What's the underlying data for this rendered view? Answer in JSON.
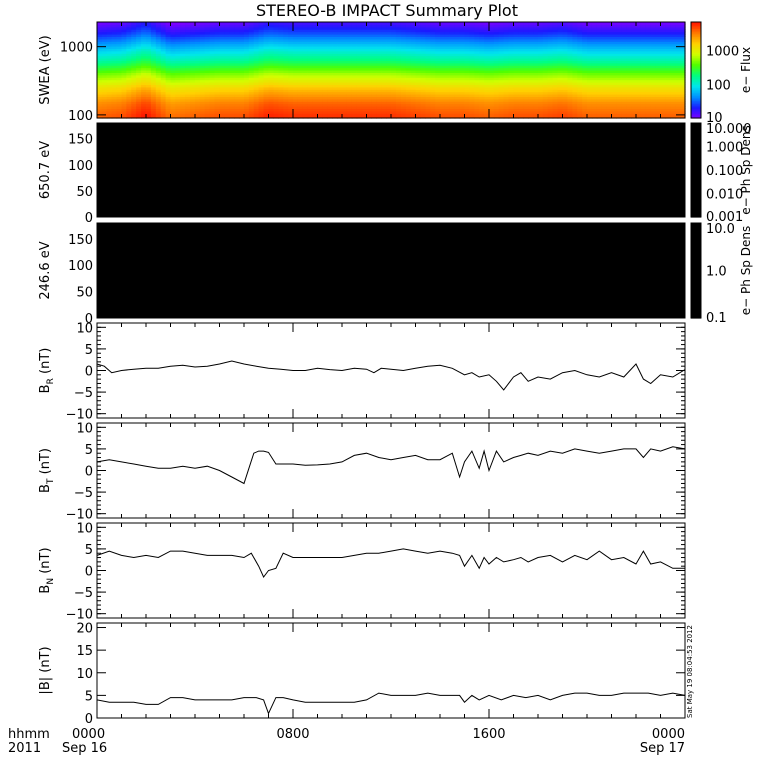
{
  "chart_data": {
    "title": "STEREO-B IMPACT Summary Plot",
    "stamp": "Sat May 19 08:04:53 2012",
    "time_axis": {
      "row_label_1": "hhmm",
      "row_label_2": "2011",
      "range_hours": [
        0,
        24
      ],
      "ticks": [
        {
          "hour": 0,
          "label": "0000",
          "date": "Sep 16"
        },
        {
          "hour": 8,
          "label": "0800",
          "date": ""
        },
        {
          "hour": 16,
          "label": "1600",
          "date": ""
        },
        {
          "hour": 24,
          "label": "0000",
          "date": "Sep 17"
        }
      ],
      "minor_every_hours": 1
    },
    "panels": [
      {
        "id": "swea",
        "type": "heatmap",
        "ylabel": "SWEA (eV)",
        "yscale": "log",
        "ylim": [
          90,
          2300
        ],
        "yticks": [
          {
            "v": 100,
            "label": "100"
          },
          {
            "v": 1000,
            "label": "1000"
          }
        ],
        "colorbar": {
          "label": "e− Flux",
          "scale": "log",
          "range": [
            10,
            7000
          ],
          "ticks": [
            {
              "v": 10,
              "label": "10"
            },
            {
              "v": 100,
              "label": "100"
            },
            {
              "v": 1000,
              "label": "1000"
            }
          ],
          "colors": [
            "#7f00ff",
            "#1a1aff",
            "#0090ff",
            "#00e5ee",
            "#00ff80",
            "#50ff00",
            "#d0ff00",
            "#ffd000",
            "#ff7a00",
            "#ff1500"
          ]
        },
        "profile": {
          "energies_eV": [
            100,
            150,
            250,
            400,
            600,
            1000,
            1600,
            2200
          ],
          "log_flux": [
            3.6,
            3.45,
            3.1,
            2.65,
            2.2,
            1.75,
            1.3,
            1.05
          ]
        },
        "modulation": {
          "hours": [
            0,
            1,
            2,
            3,
            4,
            5,
            6,
            7,
            8,
            9,
            10,
            11,
            12,
            13,
            14,
            15,
            16,
            17,
            18,
            19,
            20,
            21,
            22,
            23,
            24
          ],
          "shift": [
            0.0,
            0.05,
            0.25,
            -0.05,
            0.0,
            0.05,
            0.05,
            0.2,
            0.15,
            0.15,
            0.15,
            0.15,
            0.15,
            0.1,
            0.05,
            0.05,
            0.0,
            0.05,
            0.05,
            0.1,
            0.0,
            0.0,
            0.0,
            0.0,
            0.0
          ]
        }
      },
      {
        "id": "pad650",
        "type": "heatmap",
        "ylabel": "650.7 eV",
        "ylim": [
          0,
          180
        ],
        "yticks": [
          {
            "v": 0,
            "label": "0"
          },
          {
            "v": 50,
            "label": "50"
          },
          {
            "v": 100,
            "label": "100"
          },
          {
            "v": 150,
            "label": "150"
          }
        ],
        "fill": "#000000",
        "colorbar": {
          "label": "e− Ph Sp Dens",
          "scale": "log",
          "range": [
            0.001,
            10
          ],
          "ticks": [
            {
              "v": 0.001,
              "label": "0.001"
            },
            {
              "v": 0.01,
              "label": "0.010"
            },
            {
              "v": 0.1,
              "label": "0.100"
            },
            {
              "v": 1,
              "label": "1.000"
            },
            {
              "v": 10,
              "label": "10.000"
            }
          ],
          "colors": [
            "#000000"
          ]
        }
      },
      {
        "id": "pad246",
        "type": "heatmap",
        "ylabel": "246.6 eV",
        "ylim": [
          0,
          180
        ],
        "yticks": [
          {
            "v": 0,
            "label": "0"
          },
          {
            "v": 50,
            "label": "50"
          },
          {
            "v": 100,
            "label": "100"
          },
          {
            "v": 150,
            "label": "150"
          }
        ],
        "fill": "#000000",
        "colorbar": {
          "label": "e− Ph Sp Dens",
          "scale": "log",
          "range": [
            0.1,
            10
          ],
          "ticks": [
            {
              "v": 0.1,
              "label": "0.1"
            },
            {
              "v": 1,
              "label": "1.0"
            },
            {
              "v": 10,
              "label": "10.0"
            }
          ],
          "colors": [
            "#000000"
          ]
        }
      },
      {
        "id": "br",
        "type": "line",
        "ylabel": "B",
        "ylabel_sub": "R",
        "ylabel_unit": "(nT)",
        "ylim": [
          -11,
          11
        ],
        "yticks": [
          {
            "v": -10,
            "label": "−10"
          },
          {
            "v": -5,
            "label": "−5"
          },
          {
            "v": 0,
            "label": "0"
          },
          {
            "v": 5,
            "label": "5"
          },
          {
            "v": 10,
            "label": "10"
          }
        ],
        "x": [
          0,
          0.3,
          0.6,
          1,
          1.5,
          2,
          2.5,
          3,
          3.5,
          4,
          4.5,
          5,
          5.5,
          6,
          6.5,
          7,
          7.5,
          8,
          8.5,
          9,
          9.5,
          10,
          10.5,
          11,
          11.3,
          11.6,
          12,
          12.5,
          13,
          13.5,
          14,
          14.5,
          15,
          15.3,
          15.6,
          16,
          16.3,
          16.6,
          17,
          17.3,
          17.6,
          18,
          18.5,
          19,
          19.5,
          20,
          20.5,
          21,
          21.5,
          22,
          22.3,
          22.6,
          23,
          23.5,
          24
        ],
        "y": [
          1.5,
          1.0,
          -0.5,
          0.0,
          0.3,
          0.5,
          0.5,
          1.0,
          1.2,
          0.8,
          1.0,
          1.5,
          2.2,
          1.5,
          1.0,
          0.5,
          0.3,
          0.0,
          0.0,
          0.5,
          0.2,
          0.0,
          0.5,
          0.3,
          -0.5,
          0.5,
          0.3,
          0.0,
          0.5,
          1.0,
          1.2,
          0.5,
          -1.0,
          -0.5,
          -1.5,
          -1.0,
          -2.5,
          -4.5,
          -1.5,
          -0.5,
          -2.5,
          -1.5,
          -2.0,
          -0.5,
          0.0,
          -1.0,
          -1.5,
          -0.5,
          -1.5,
          1.5,
          -2.0,
          -3.0,
          -1.0,
          -1.5,
          0.2
        ]
      },
      {
        "id": "bt",
        "type": "line",
        "ylabel": "B",
        "ylabel_sub": "T",
        "ylabel_unit": "(nT)",
        "ylim": [
          -11,
          11
        ],
        "yticks": [
          {
            "v": -10,
            "label": "−10"
          },
          {
            "v": -5,
            "label": "−5"
          },
          {
            "v": 0,
            "label": "0"
          },
          {
            "v": 5,
            "label": "5"
          },
          {
            "v": 10,
            "label": "10"
          }
        ],
        "x": [
          0,
          0.5,
          1,
          1.5,
          2,
          2.5,
          3,
          3.5,
          4,
          4.5,
          5,
          5.5,
          6,
          6.2,
          6.4,
          6.6,
          6.8,
          7,
          7.3,
          7.6,
          8,
          8.5,
          9,
          9.5,
          10,
          10.5,
          11,
          11.5,
          12,
          12.5,
          13,
          13.5,
          14,
          14.5,
          14.8,
          15.0,
          15.3,
          15.6,
          15.8,
          16,
          16.3,
          16.6,
          17,
          17.3,
          17.6,
          18,
          18.5,
          19,
          19.5,
          20,
          20.5,
          21,
          21.5,
          22,
          22.3,
          22.6,
          23,
          23.5,
          24
        ],
        "y": [
          2.0,
          2.5,
          2.0,
          1.5,
          1.0,
          0.5,
          0.5,
          1.0,
          0.5,
          1.0,
          0.0,
          -1.5,
          -3.0,
          0.5,
          4.0,
          4.5,
          4.5,
          4.2,
          1.5,
          1.5,
          1.5,
          1.2,
          1.3,
          1.5,
          2.0,
          3.5,
          4.0,
          3.0,
          2.5,
          3.0,
          3.5,
          2.5,
          2.5,
          4.0,
          -1.5,
          2.0,
          4.5,
          0.5,
          4.5,
          0.0,
          4.5,
          2.0,
          3.0,
          3.5,
          4.0,
          3.5,
          4.5,
          4.0,
          5.0,
          4.5,
          4.0,
          4.5,
          5.0,
          5.0,
          3.0,
          5.0,
          4.5,
          5.5,
          5.0
        ]
      },
      {
        "id": "bn",
        "type": "line",
        "ylabel": "B",
        "ylabel_sub": "N",
        "ylabel_unit": "(nT)",
        "ylim": [
          -11,
          11
        ],
        "yticks": [
          {
            "v": -10,
            "label": "−10"
          },
          {
            "v": -5,
            "label": "−5"
          },
          {
            "v": 0,
            "label": "0"
          },
          {
            "v": 5,
            "label": "5"
          },
          {
            "v": 10,
            "label": "10"
          }
        ],
        "x": [
          0,
          0.5,
          1,
          1.5,
          2,
          2.5,
          3,
          3.5,
          4,
          4.5,
          5,
          5.5,
          6,
          6.3,
          6.6,
          6.8,
          7.0,
          7.3,
          7.6,
          8,
          8.5,
          9,
          9.5,
          10,
          10.5,
          11,
          11.5,
          12,
          12.5,
          13,
          13.5,
          14,
          14.5,
          14.8,
          15.0,
          15.3,
          15.6,
          15.8,
          16,
          16.3,
          16.6,
          17,
          17.3,
          17.6,
          18,
          18.5,
          19,
          19.5,
          20,
          20.5,
          21,
          21.5,
          22,
          22.3,
          22.6,
          23,
          23.5,
          24
        ],
        "y": [
          3.5,
          4.5,
          3.5,
          3.0,
          3.5,
          3.0,
          4.5,
          4.5,
          4.0,
          3.5,
          3.5,
          3.5,
          3.0,
          4.0,
          1.0,
          -1.5,
          0.0,
          0.5,
          4.0,
          3.0,
          3.0,
          3.0,
          3.0,
          3.0,
          3.5,
          4.0,
          4.0,
          4.5,
          5.0,
          4.5,
          4.0,
          4.5,
          4.0,
          3.5,
          1.0,
          3.5,
          0.5,
          3.0,
          1.5,
          3.0,
          2.0,
          2.5,
          3.0,
          2.0,
          3.0,
          3.5,
          2.0,
          3.5,
          2.5,
          4.5,
          2.5,
          3.0,
          1.5,
          4.5,
          1.5,
          2.0,
          0.5,
          0.5
        ]
      },
      {
        "id": "bmag",
        "type": "line",
        "ylabel": "|B| (nT)",
        "ylim": [
          0,
          21
        ],
        "yticks": [
          {
            "v": 0,
            "label": "0"
          },
          {
            "v": 5,
            "label": "5"
          },
          {
            "v": 10,
            "label": "10"
          },
          {
            "v": 15,
            "label": "15"
          },
          {
            "v": 20,
            "label": "20"
          }
        ],
        "x": [
          0,
          0.5,
          1,
          1.5,
          2,
          2.5,
          3,
          3.5,
          4,
          4.5,
          5,
          5.5,
          6,
          6.5,
          6.8,
          7.0,
          7.3,
          7.6,
          8,
          8.5,
          9,
          9.5,
          10,
          10.5,
          11,
          11.5,
          12,
          12.5,
          13,
          13.5,
          14,
          14.5,
          14.8,
          15.0,
          15.3,
          15.6,
          16,
          16.5,
          17,
          17.5,
          18,
          18.5,
          19,
          19.5,
          20,
          20.5,
          21,
          21.5,
          22,
          22.5,
          23,
          23.5,
          24
        ],
        "y": [
          4.0,
          3.5,
          3.5,
          3.5,
          3.0,
          3.0,
          4.5,
          4.5,
          4.0,
          4.0,
          4.0,
          4.0,
          4.5,
          4.5,
          4.0,
          1.0,
          4.5,
          4.5,
          4.0,
          3.5,
          3.5,
          3.5,
          3.5,
          3.5,
          4.0,
          5.5,
          5.0,
          5.0,
          5.0,
          5.5,
          5.0,
          5.0,
          5.0,
          3.5,
          5.0,
          4.0,
          5.0,
          4.0,
          5.0,
          4.5,
          5.0,
          4.0,
          5.0,
          5.5,
          5.5,
          5.0,
          5.0,
          5.5,
          5.5,
          5.5,
          5.0,
          5.5,
          5.0
        ]
      }
    ]
  }
}
